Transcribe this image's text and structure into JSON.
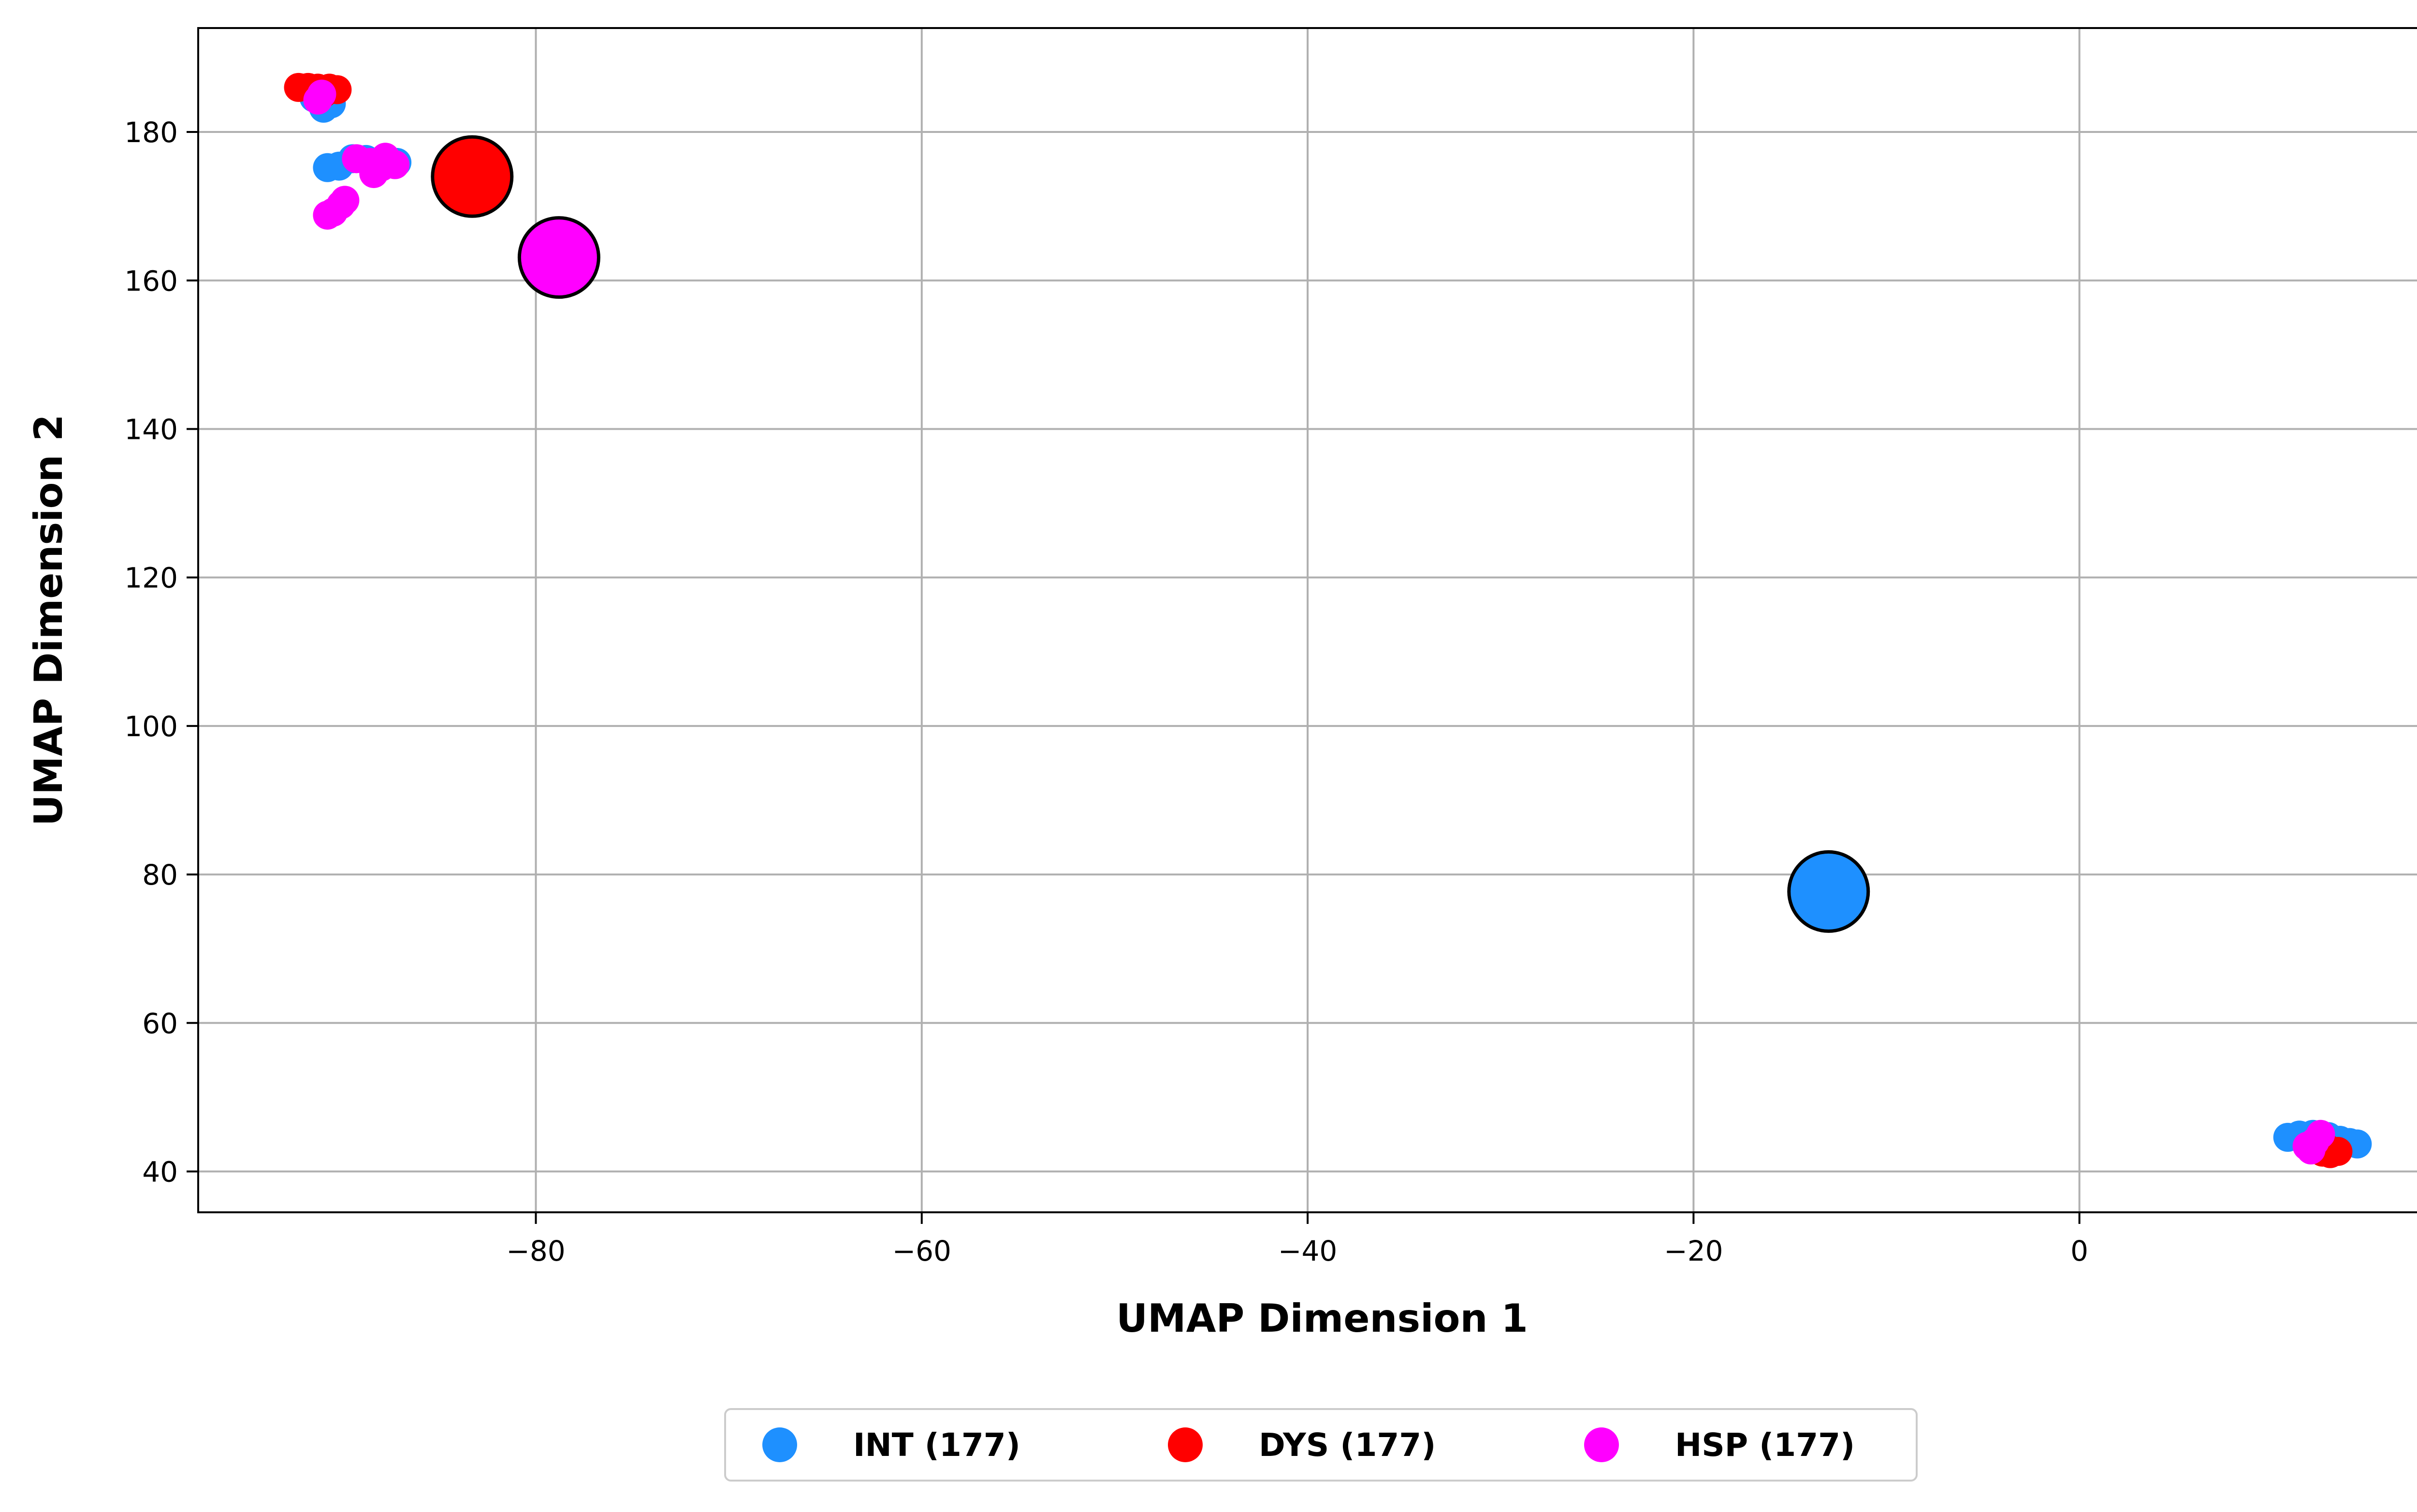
{
  "chart_data": {
    "type": "scatter",
    "title": "",
    "xlabel": "UMAP Dimension 1",
    "ylabel": "UMAP Dimension 2",
    "xlim": [
      -97.5,
      19
    ],
    "ylim": [
      34.5,
      194
    ],
    "x_ticks": [
      {
        "value": -80,
        "label": "−80"
      },
      {
        "value": -60,
        "label": "−60"
      },
      {
        "value": -40,
        "label": "−40"
      },
      {
        "value": -20,
        "label": "−20"
      },
      {
        "value": 0,
        "label": "0"
      }
    ],
    "y_ticks": [
      {
        "value": 40,
        "label": "40"
      },
      {
        "value": 60,
        "label": "60"
      },
      {
        "value": 80,
        "label": "80"
      },
      {
        "value": 100,
        "label": "100"
      },
      {
        "value": 120,
        "label": "120"
      },
      {
        "value": 140,
        "label": "140"
      },
      {
        "value": 160,
        "label": "160"
      },
      {
        "value": 180,
        "label": "180"
      }
    ],
    "grid": true,
    "legend_position": "below-center",
    "series": [
      {
        "name": "INT (177)",
        "color": "#1e90ff",
        "points": [
          {
            "x": -90.8,
            "y": 175.2
          },
          {
            "x": -90.2,
            "y": 175.4
          },
          {
            "x": -89.5,
            "y": 176.4
          },
          {
            "x": -88.8,
            "y": 176.3
          },
          {
            "x": -87.9,
            "y": 176.2
          },
          {
            "x": -87.2,
            "y": 175.9
          },
          {
            "x": -91.5,
            "y": 184.6
          },
          {
            "x": -91.0,
            "y": 183.2
          },
          {
            "x": -90.6,
            "y": 183.8
          },
          {
            "x": 10.8,
            "y": 44.6
          },
          {
            "x": 11.4,
            "y": 44.9
          },
          {
            "x": 12.1,
            "y": 45.0
          },
          {
            "x": 12.9,
            "y": 44.7
          },
          {
            "x": 13.5,
            "y": 44.2
          },
          {
            "x": 14.0,
            "y": 43.9
          },
          {
            "x": 14.4,
            "y": 43.7
          },
          {
            "x": 11.9,
            "y": 44.2
          }
        ],
        "centroid": {
          "x": -13.0,
          "y": 77.7
        }
      },
      {
        "name": "DYS (177)",
        "color": "#ff0000",
        "points": [
          {
            "x": -92.3,
            "y": 186.0
          },
          {
            "x": -91.8,
            "y": 186.0
          },
          {
            "x": -91.3,
            "y": 185.9
          },
          {
            "x": -90.7,
            "y": 185.9
          },
          {
            "x": -90.3,
            "y": 185.7
          },
          {
            "x": -91.0,
            "y": 185.2
          },
          {
            "x": 12.6,
            "y": 42.6
          },
          {
            "x": 13.0,
            "y": 42.4
          },
          {
            "x": 13.4,
            "y": 42.7
          },
          {
            "x": 12.8,
            "y": 43.2
          }
        ],
        "centroid": {
          "x": -83.3,
          "y": 174.0
        }
      },
      {
        "name": "HSP (177)",
        "color": "#ff00ff",
        "points": [
          {
            "x": -91.3,
            "y": 184.3
          },
          {
            "x": -91.1,
            "y": 185.1
          },
          {
            "x": -89.3,
            "y": 176.4
          },
          {
            "x": -88.6,
            "y": 175.9
          },
          {
            "x": -88.0,
            "y": 175.3
          },
          {
            "x": -87.3,
            "y": 175.6
          },
          {
            "x": -88.4,
            "y": 174.4
          },
          {
            "x": -87.8,
            "y": 176.6
          },
          {
            "x": -90.8,
            "y": 168.8
          },
          {
            "x": -90.5,
            "y": 169.2
          },
          {
            "x": -90.1,
            "y": 170.2
          },
          {
            "x": -89.9,
            "y": 170.8
          },
          {
            "x": 11.8,
            "y": 43.4
          },
          {
            "x": 12.2,
            "y": 44.0
          },
          {
            "x": 12.5,
            "y": 45.0
          },
          {
            "x": 12.0,
            "y": 42.9
          }
        ],
        "centroid": {
          "x": -78.8,
          "y": 163.1
        }
      }
    ]
  }
}
